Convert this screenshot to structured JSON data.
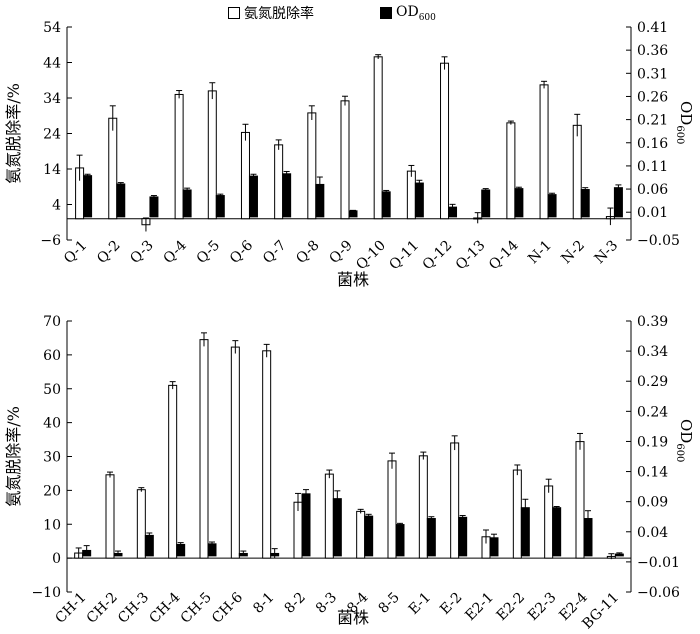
{
  "legend": {
    "removal_label": "氨氮脱除率",
    "od_label": "OD",
    "od_sub": "600"
  },
  "chart_data": [
    {
      "type": "bar",
      "xlabel": "菌株",
      "ylabel": "氨氮脱除率/%",
      "y2label": "OD",
      "y2label_sub": "600",
      "ylim": [
        -6,
        54
      ],
      "yticks": [
        -6,
        4,
        14,
        24,
        34,
        44,
        54
      ],
      "y2lim": [
        -0.05,
        0.41
      ],
      "y2ticks": [
        "−0.05",
        "0.01",
        "0.06",
        "0.11",
        "0.16",
        "0.21",
        "0.26",
        "0.31",
        "0.36",
        "0.41"
      ],
      "categories": [
        "Q-1",
        "Q-2",
        "Q-3",
        "Q-4",
        "Q-5",
        "Q-6",
        "Q-7",
        "Q-8",
        "Q-9",
        "Q-10",
        "Q-11",
        "Q-12",
        "Q-13",
        "Q-14",
        "N-1",
        "N-2",
        "N-3"
      ],
      "series": [
        {
          "name": "氨氮脱除率",
          "axis": "left",
          "values": [
            14.3,
            28.3,
            -1.7,
            35.0,
            36.0,
            24.3,
            20.8,
            29.8,
            33.2,
            45.6,
            13.4,
            43.8,
            0.2,
            27.0,
            37.7,
            26.3,
            0.6
          ],
          "errors": [
            3.6,
            3.5,
            1.9,
            1.1,
            2.3,
            2.3,
            1.4,
            2.0,
            1.3,
            0.6,
            1.6,
            1.8,
            1.5,
            0.5,
            1.0,
            3.1,
            2.4
          ]
        },
        {
          "name": "OD600",
          "axis": "right",
          "values": [
            0.089,
            0.071,
            0.043,
            0.058,
            0.046,
            0.088,
            0.093,
            0.07,
            0.013,
            0.054,
            0.073,
            0.021,
            0.058,
            0.061,
            0.048,
            0.059,
            0.063
          ],
          "errors": [
            0.003,
            0.003,
            0.003,
            0.004,
            0.003,
            0.004,
            0.005,
            0.016,
            0.001,
            0.003,
            0.006,
            0.006,
            0.003,
            0.003,
            0.003,
            0.004,
            0.006
          ]
        }
      ]
    },
    {
      "type": "bar",
      "xlabel": "菌株",
      "ylabel": "氨氮脱除率/%",
      "y2label": "OD",
      "y2label_sub": "600",
      "ylim": [
        -10,
        70
      ],
      "yticks": [
        -10,
        0,
        10,
        20,
        30,
        40,
        50,
        60,
        70
      ],
      "y2lim": [
        -0.06,
        0.39
      ],
      "y2ticks": [
        "−0.06",
        "−0.01",
        "0.04",
        "0.09",
        "0.14",
        "0.19",
        "0.24",
        "0.29",
        "0.34",
        "0.39"
      ],
      "categories": [
        "CH-1",
        "CH-2",
        "CH-3",
        "CH-4",
        "CH-5",
        "CH-6",
        "8-1",
        "8-2",
        "8-3",
        "8-4",
        "8-5",
        "E-1",
        "E-2",
        "E2-1",
        "E2-2",
        "E2-3",
        "E2-4",
        "BG-11"
      ],
      "series": [
        {
          "name": "氨氮脱除率",
          "axis": "left",
          "values": [
            1.5,
            24.6,
            20.2,
            51.0,
            64.5,
            62.3,
            61.2,
            16.5,
            24.8,
            13.8,
            28.7,
            30.2,
            34.0,
            6.3,
            26.0,
            21.3,
            34.4,
            0.5
          ],
          "errors": [
            1.5,
            0.8,
            0.6,
            1.1,
            2.0,
            1.9,
            1.9,
            2.6,
            1.2,
            0.6,
            2.3,
            1.1,
            2.1,
            2.0,
            1.5,
            2.0,
            2.4,
            0.8
          ]
        },
        {
          "name": "OD600",
          "axis": "right",
          "values": [
            0.009,
            0.004,
            0.034,
            0.019,
            0.02,
            0.004,
            0.004,
            0.103,
            0.095,
            0.066,
            0.052,
            0.062,
            0.064,
            0.03,
            0.08,
            0.08,
            0.062,
            0.003
          ],
          "errors": [
            0.008,
            0.004,
            0.004,
            0.003,
            0.003,
            0.004,
            0.008,
            0.007,
            0.013,
            0.003,
            0.002,
            0.003,
            0.003,
            0.006,
            0.014,
            0.002,
            0.013,
            0.002
          ]
        }
      ]
    }
  ]
}
